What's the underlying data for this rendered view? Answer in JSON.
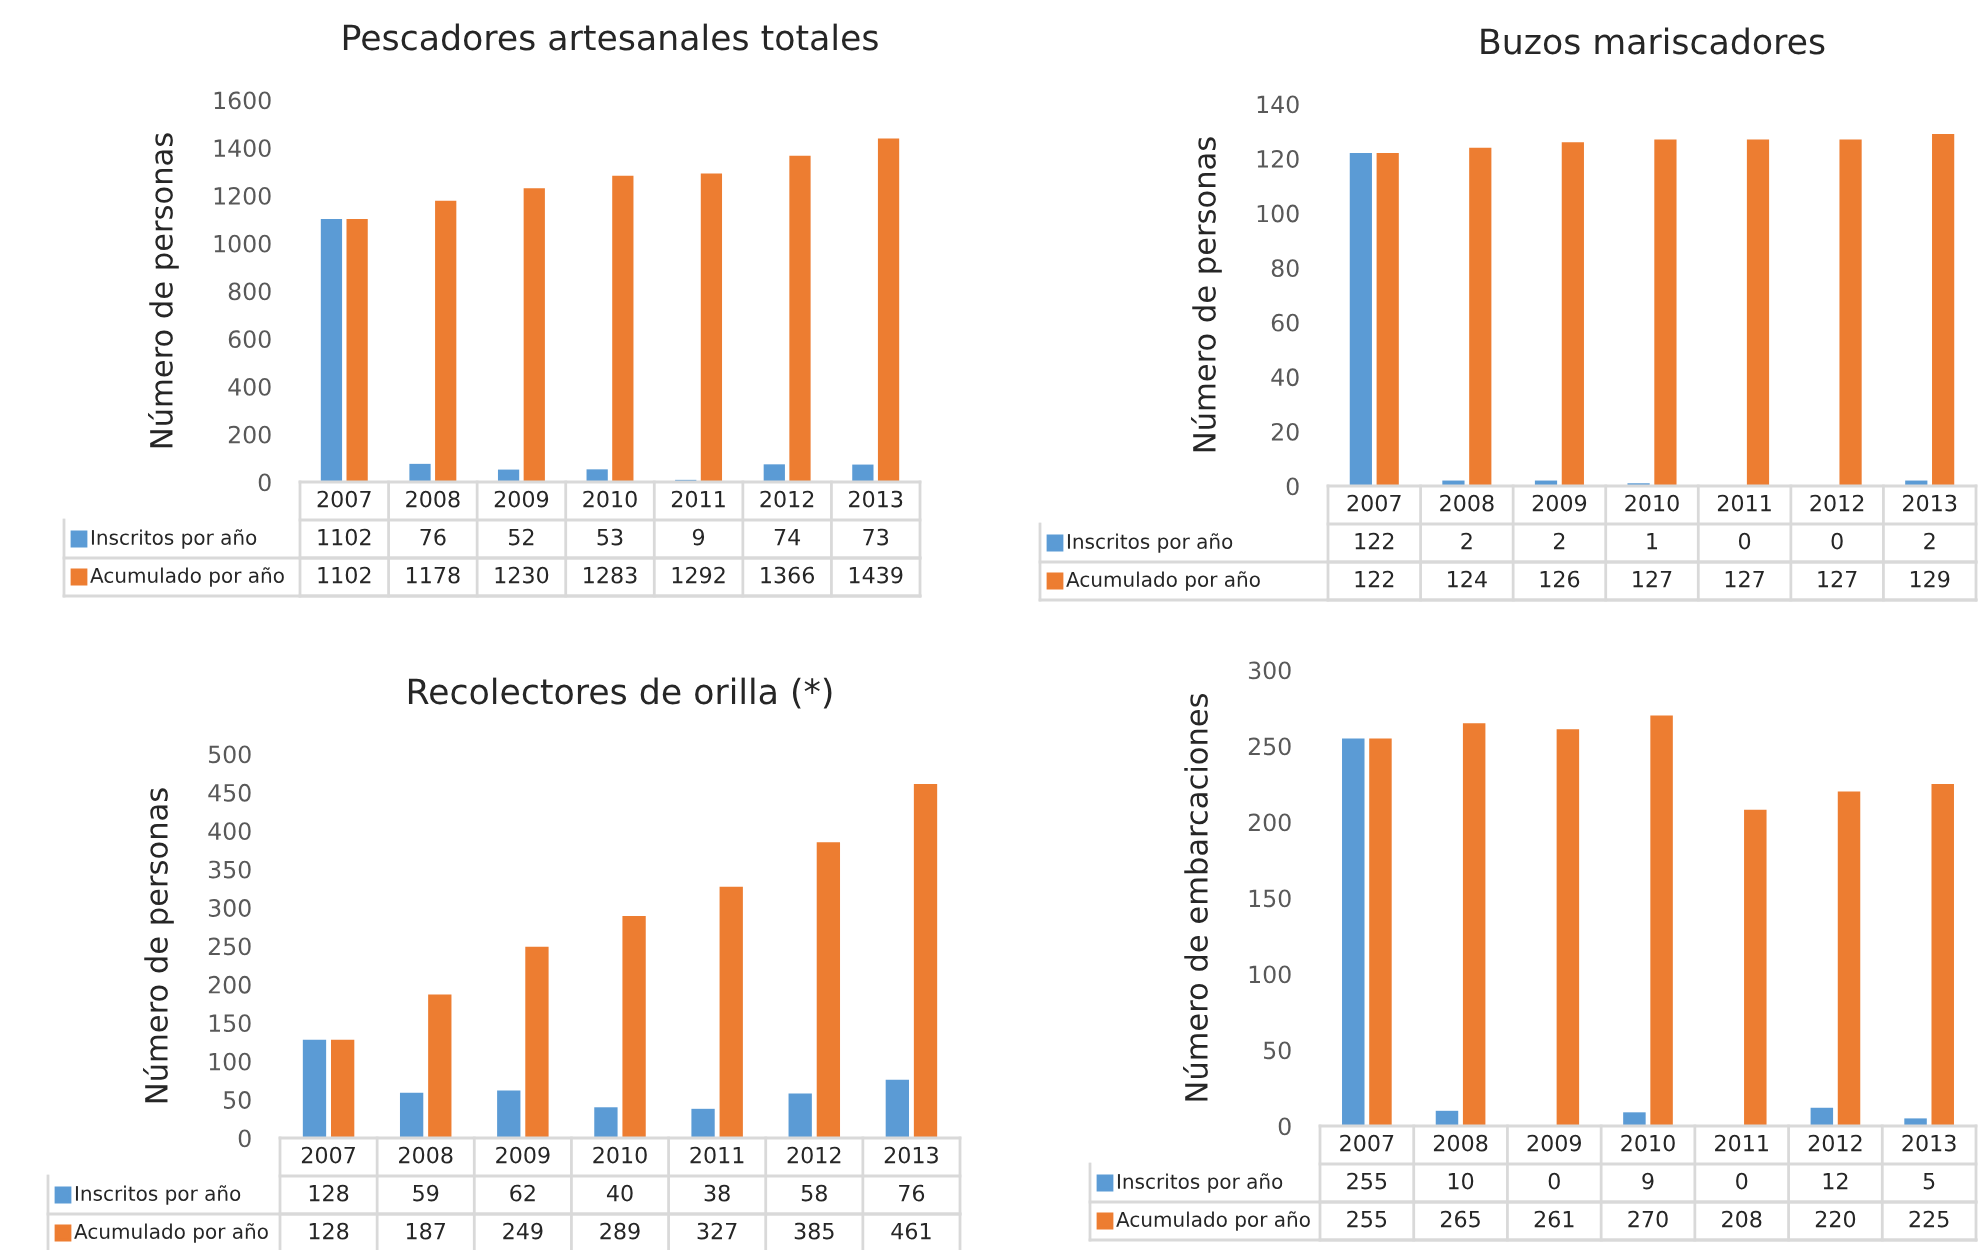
{
  "chart_data": [
    {
      "type": "bar",
      "title": "Pescadores artesanales totales",
      "ylabel": "Número de personas",
      "categories": [
        "2007",
        "2008",
        "2009",
        "2010",
        "2011",
        "2012",
        "2013"
      ],
      "series": [
        {
          "name": "Inscritos por año",
          "color": "#5b9bd5",
          "values": [
            1102,
            76,
            52,
            53,
            9,
            74,
            73
          ]
        },
        {
          "name": "Acumulado por año",
          "color": "#ed7d31",
          "values": [
            1102,
            1178,
            1230,
            1283,
            1292,
            1366,
            1439
          ]
        }
      ],
      "ylim": [
        0,
        1600
      ],
      "yticks": [
        0,
        200,
        400,
        600,
        800,
        1000,
        1200,
        1400,
        1600
      ],
      "data_labels": true,
      "legend": "bottom",
      "grid": false
    },
    {
      "type": "bar",
      "title": "Buzos mariscadores",
      "ylabel": "Número de personas",
      "categories": [
        "2007",
        "2008",
        "2009",
        "2010",
        "2011",
        "2012",
        "2013"
      ],
      "series": [
        {
          "name": "Inscritos por año",
          "color": "#5b9bd5",
          "values": [
            122,
            2,
            2,
            1,
            0,
            0,
            2
          ]
        },
        {
          "name": "Acumulado por año",
          "color": "#ed7d31",
          "values": [
            122,
            124,
            126,
            127,
            127,
            127,
            129
          ]
        }
      ],
      "ylim": [
        0,
        140
      ],
      "yticks": [
        0,
        20,
        40,
        60,
        80,
        100,
        120,
        140
      ],
      "data_labels": true,
      "legend": "bottom",
      "grid": false
    },
    {
      "type": "bar",
      "title": "Recolectores de orilla (*)",
      "ylabel": "Número de personas",
      "categories": [
        "2007",
        "2008",
        "2009",
        "2010",
        "2011",
        "2012",
        "2013"
      ],
      "series": [
        {
          "name": "Inscritos por año",
          "color": "#5b9bd5",
          "values": [
            128,
            59,
            62,
            40,
            38,
            58,
            76
          ]
        },
        {
          "name": "Acumulado por año",
          "color": "#ed7d31",
          "values": [
            128,
            187,
            249,
            289,
            327,
            385,
            461
          ]
        }
      ],
      "ylim": [
        0,
        500
      ],
      "yticks": [
        0,
        50,
        100,
        150,
        200,
        250,
        300,
        350,
        400,
        450,
        500
      ],
      "data_labels": true,
      "legend": "bottom",
      "grid": false
    },
    {
      "type": "bar",
      "ylabel": "Número de embarcaciones",
      "categories": [
        "2007",
        "2008",
        "2009",
        "2010",
        "2011",
        "2012",
        "2013"
      ],
      "series": [
        {
          "name": "Inscritos por año",
          "color": "#5b9bd5",
          "values": [
            255,
            10,
            0,
            9,
            0,
            12,
            5
          ]
        },
        {
          "name": "Acumulado por año",
          "color": "#ed7d31",
          "values": [
            255,
            265,
            261,
            270,
            208,
            220,
            225
          ]
        }
      ],
      "ylim": [
        0,
        300
      ],
      "yticks": [
        0,
        50,
        100,
        150,
        200,
        250,
        300
      ],
      "data_labels": true,
      "legend": "bottom",
      "grid": false
    }
  ]
}
